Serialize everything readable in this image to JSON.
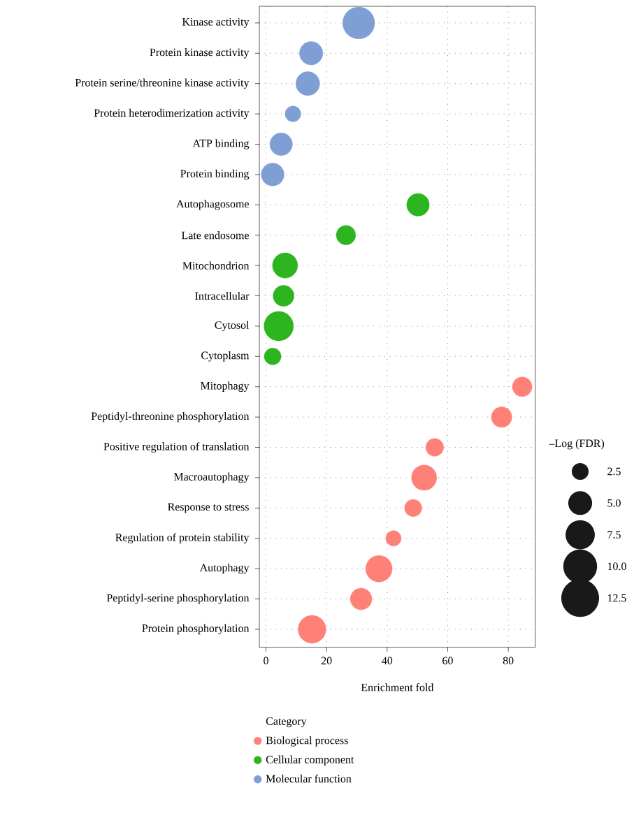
{
  "chart_data": {
    "type": "bubble",
    "orientation": "horizontal",
    "xlabel": "Enrichment fold",
    "legend_title": "Category",
    "annotations": [
      "–Log (FDR)"
    ],
    "categories": [
      "Kinase activity",
      "Protein kinase activity",
      "Protein serine/threonine kinase activity",
      "Protein heterodimerization activity",
      "ATP binding",
      "Protein binding",
      "Autophagosome",
      "Late endosome",
      "Mitochondrion",
      "Intracellular",
      "Cytosol",
      "Cytoplasm",
      "Mitophagy",
      "Peptidyl-threonine phosphorylation",
      "Positive regulation of translation",
      "Macroautophagy",
      "Response to stress",
      "Regulation of protein stability",
      "Autophagy",
      "Peptidyl-serine phosphorylation",
      "Protein phosphorylation"
    ],
    "series": [
      {
        "name": "Biological process",
        "color": "#ff8077",
        "values": [
          null,
          null,
          null,
          null,
          null,
          null,
          null,
          null,
          null,
          null,
          null,
          null,
          84.6,
          77.8,
          55.7,
          52.2,
          48.6,
          42.1,
          37.3,
          31.4,
          15.2
        ],
        "sizes": [
          null,
          null,
          null,
          null,
          null,
          null,
          null,
          null,
          null,
          null,
          null,
          null,
          3.4,
          3.7,
          2.8,
          5.6,
          2.6,
          2.1,
          6.2,
          4.1,
          6.8
        ]
      },
      {
        "name": "Cellular component",
        "color": "#2db51f",
        "values": [
          null,
          null,
          null,
          null,
          null,
          null,
          50.2,
          26.4,
          6.3,
          5.8,
          4.2,
          2.2,
          null,
          null,
          null,
          null,
          null,
          null,
          null,
          null,
          null
        ],
        "sizes": [
          null,
          null,
          null,
          null,
          null,
          null,
          4.5,
          3.3,
          5.6,
          3.9,
          7.6,
          2.5,
          null,
          null,
          null,
          null,
          null,
          null,
          null,
          null,
          null
        ]
      },
      {
        "name": "Molecular function",
        "color": "#7f9fd4",
        "values": [
          30.6,
          14.9,
          13.8,
          8.9,
          5.0,
          2.2,
          null,
          null,
          null,
          null,
          null,
          null,
          null,
          null,
          null,
          null,
          null,
          null,
          null,
          null,
          null
        ],
        "sizes": [
          9.0,
          4.8,
          5.0,
          2.2,
          4.5,
          4.6,
          null,
          null,
          null,
          null,
          null,
          null,
          null,
          null,
          null,
          null,
          null,
          null,
          null,
          null,
          null
        ]
      }
    ],
    "size_legend": [
      {
        "value": 2.5,
        "label": "2.5"
      },
      {
        "value": 5.0,
        "label": "5.0"
      },
      {
        "value": 7.5,
        "label": "7.5"
      },
      {
        "value": 10.0,
        "label": "10.0"
      },
      {
        "value": 12.5,
        "label": "12.5"
      }
    ],
    "xlim": [
      -2.2,
      88.9
    ],
    "xticks": [
      0,
      20,
      40,
      60,
      80
    ],
    "grid": true,
    "legend": "bottom",
    "marker": "circle"
  }
}
